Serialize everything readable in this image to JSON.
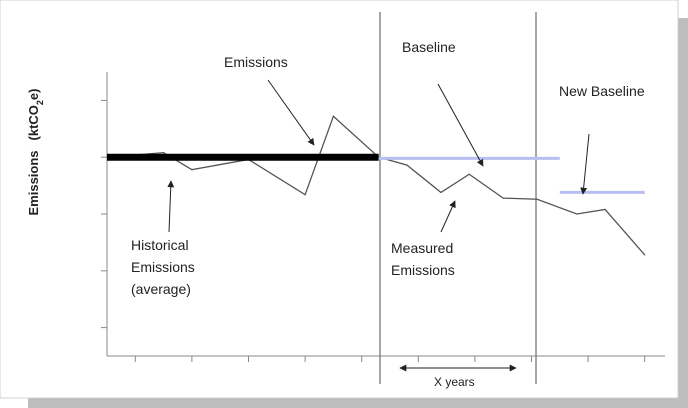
{
  "chart_data": {
    "type": "line",
    "ylabel_main": "Emissions",
    "ylabel_unit_pre": "(ktCO",
    "ylabel_unit_sub": "2",
    "ylabel_unit_post": "e)",
    "annotations": {
      "emissions": "Emissions",
      "baseline": "Baseline",
      "new_baseline": "New Baseline",
      "historical": [
        "Historical",
        "Emissions",
        "(average)"
      ],
      "measured": [
        "Measured",
        "Emissions"
      ],
      "x_years": "X years"
    },
    "colors": {
      "emissions_line": "#555555",
      "historical_average": "#000000",
      "baseline": "#b8bef0",
      "dividers": "#777777",
      "frame_shadow": "#bdbdbd"
    },
    "series": [
      {
        "values": [
          [
            0.0,
            0.5
          ],
          [
            1.0,
            0.54
          ],
          [
            1.5,
            0.39
          ],
          [
            2.5,
            0.48
          ],
          [
            3.5,
            0.17
          ],
          [
            4.0,
            0.86
          ],
          [
            4.8,
            0.5
          ],
          [
            5.3,
            0.43
          ],
          [
            5.9,
            0.19
          ],
          [
            6.4,
            0.35
          ],
          [
            7.0,
            0.14
          ],
          [
            7.6,
            0.13
          ],
          [
            8.3,
            0.0
          ],
          [
            8.8,
            0.04
          ],
          [
            9.5,
            -0.36
          ]
        ]
      }
    ],
    "levels": {
      "historical_average": {
        "x": [
          0.0,
          4.8
        ],
        "y": 0.5
      },
      "baseline": {
        "x": [
          4.8,
          8.0
        ],
        "y": 0.49
      },
      "new_baseline": {
        "x": [
          8.0,
          9.5
        ],
        "y": 0.19
      }
    },
    "y_ticks": [
      -1.0,
      -0.5,
      0.0,
      0.5,
      1.0
    ],
    "x_ticks": [
      0.5,
      1.5,
      2.5,
      3.5,
      4.5,
      5.5,
      6.5,
      7.5,
      8.5,
      9.5
    ],
    "x_range": [
      0.0,
      10.0
    ],
    "y_range": [
      -1.25,
      1.25
    ]
  }
}
